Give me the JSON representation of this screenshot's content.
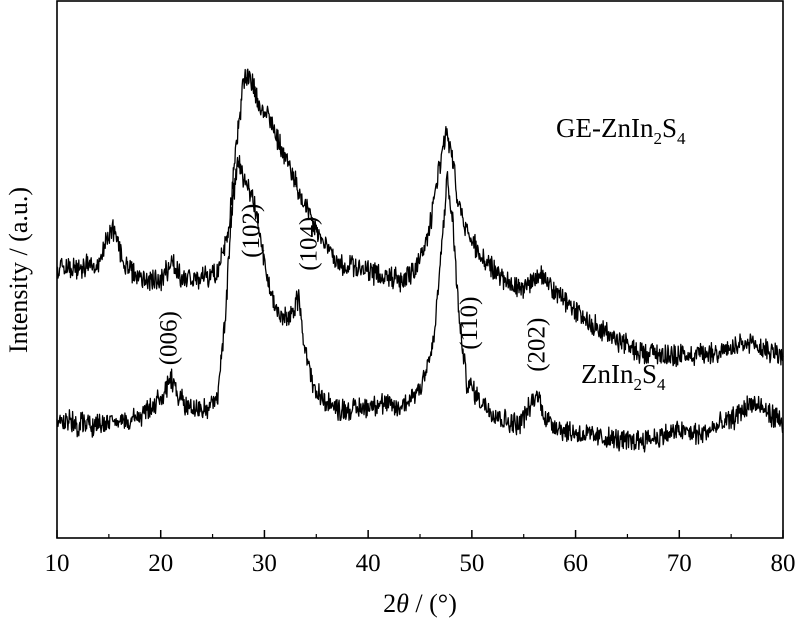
{
  "chart_data": {
    "type": "line",
    "title": "",
    "xlabel_prefix": "2",
    "xlabel_symbol": "θ",
    "xlabel_suffix": " / (°)",
    "ylabel": "Intensity / (a.u.)",
    "xlim": [
      10,
      80
    ],
    "xticks": [
      10,
      20,
      30,
      40,
      50,
      60,
      70,
      80
    ],
    "xtick_labels": [
      "10",
      "20",
      "30",
      "40",
      "50",
      "60",
      "70",
      "80"
    ],
    "y_ticks_shown": false,
    "grid": false,
    "series": [
      {
        "name": "GE-ZnIn2S4",
        "label_parts": {
          "a": "GE-ZnIn",
          "b": "2",
          "c": "S",
          "d": "4"
        },
        "points": [
          [
            10,
            0.72
          ],
          [
            12,
            0.7
          ],
          [
            14,
            0.73
          ],
          [
            15.3,
            0.9
          ],
          [
            16.5,
            0.73
          ],
          [
            18,
            0.66
          ],
          [
            20,
            0.65
          ],
          [
            21,
            0.74
          ],
          [
            22,
            0.66
          ],
          [
            24,
            0.66
          ],
          [
            25.5,
            0.68
          ],
          [
            26.5,
            0.85
          ],
          [
            27.2,
            1.25
          ],
          [
            28,
            1.58
          ],
          [
            28.6,
            1.6
          ],
          [
            29.5,
            1.45
          ],
          [
            30.5,
            1.4
          ],
          [
            31.5,
            1.28
          ],
          [
            33,
            1.1
          ],
          [
            35,
            0.88
          ],
          [
            37,
            0.74
          ],
          [
            39,
            0.7
          ],
          [
            41,
            0.68
          ],
          [
            43,
            0.65
          ],
          [
            44.5,
            0.7
          ],
          [
            45.8,
            0.85
          ],
          [
            46.8,
            1.15
          ],
          [
            47.5,
            1.32
          ],
          [
            48,
            1.27
          ],
          [
            48.7,
            1.0
          ],
          [
            49.5,
            0.88
          ],
          [
            51,
            0.75
          ],
          [
            53,
            0.65
          ],
          [
            55,
            0.62
          ],
          [
            56.5,
            0.68
          ],
          [
            58,
            0.6
          ],
          [
            60,
            0.5
          ],
          [
            63,
            0.4
          ],
          [
            66,
            0.32
          ],
          [
            70,
            0.3
          ],
          [
            74,
            0.32
          ],
          [
            77,
            0.35
          ],
          [
            80,
            0.3
          ]
        ]
      },
      {
        "name": "ZnIn2S4",
        "label_parts": {
          "a": "ZnIn",
          "b": "2",
          "c": "S",
          "d": "4"
        },
        "points": [
          [
            10,
            0.0
          ],
          [
            12,
            -0.02
          ],
          [
            14,
            -0.02
          ],
          [
            16,
            0.0
          ],
          [
            18,
            0.0
          ],
          [
            19.5,
            0.08
          ],
          [
            21,
            0.18
          ],
          [
            22,
            0.1
          ],
          [
            23,
            0.05
          ],
          [
            24.5,
            0.05
          ],
          [
            25.5,
            0.12
          ],
          [
            26.2,
            0.45
          ],
          [
            26.8,
            0.95
          ],
          [
            27.4,
            1.2
          ],
          [
            28.2,
            1.12
          ],
          [
            29,
            1.02
          ],
          [
            29.8,
            0.8
          ],
          [
            30.5,
            0.6
          ],
          [
            31.5,
            0.48
          ],
          [
            32.5,
            0.47
          ],
          [
            33.3,
            0.58
          ],
          [
            34,
            0.3
          ],
          [
            35,
            0.12
          ],
          [
            37,
            0.05
          ],
          [
            39,
            0.05
          ],
          [
            41,
            0.08
          ],
          [
            43,
            0.05
          ],
          [
            45,
            0.15
          ],
          [
            46.3,
            0.35
          ],
          [
            47,
            0.75
          ],
          [
            47.6,
            1.12
          ],
          [
            48.2,
            0.9
          ],
          [
            48.8,
            0.45
          ],
          [
            49.5,
            0.18
          ],
          [
            51,
            0.08
          ],
          [
            53,
            0.0
          ],
          [
            54.5,
            -0.02
          ],
          [
            55.5,
            0.05
          ],
          [
            56.3,
            0.12
          ],
          [
            57.2,
            0.0
          ],
          [
            59,
            -0.05
          ],
          [
            62,
            -0.08
          ],
          [
            65,
            -0.1
          ],
          [
            68,
            -0.08
          ],
          [
            70,
            -0.05
          ],
          [
            72,
            -0.07
          ],
          [
            75,
            0.0
          ],
          [
            77,
            0.08
          ],
          [
            79,
            0.02
          ],
          [
            80,
            -0.02
          ]
        ]
      }
    ],
    "annotations": [
      {
        "text": "(102)",
        "x": 29.5,
        "y": 0.88,
        "series": "GE-ZnIn2S4"
      },
      {
        "text": "(110)",
        "x": 50.5,
        "y": 0.45,
        "series": "ZnIn2S4"
      },
      {
        "text": "(104)",
        "x": 35.0,
        "y": 0.82,
        "series": "ZnIn2S4"
      },
      {
        "text": "(006)",
        "x": 21.5,
        "y": 0.38,
        "series": "ZnIn2S4"
      },
      {
        "text": "(202)",
        "x": 57.0,
        "y": 0.35,
        "series": "ZnIn2S4"
      }
    ]
  }
}
